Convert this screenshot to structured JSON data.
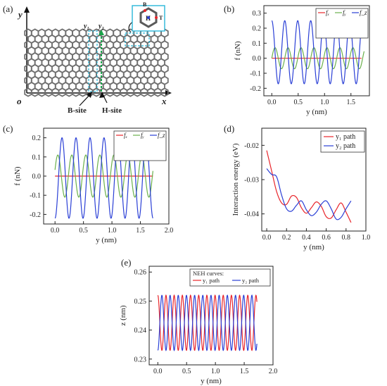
{
  "panel_a": {
    "label": "(a)",
    "axis_y": "y",
    "axis_x": "x",
    "origin": "o",
    "y1": "y₁",
    "y2": "y₂",
    "b_site": "B-site",
    "h_site": "H-site",
    "inset_b": "B",
    "inset_t": "T",
    "inset_h": "H"
  },
  "chart_data": [
    {
      "panel": "(b)",
      "type": "line",
      "xlabel": "y (nm)",
      "ylabel": "f (nN)",
      "xlim": [
        -0.15,
        1.85
      ],
      "ylim": [
        -0.25,
        0.35
      ],
      "xticks": [
        "0.0",
        "0.5",
        "1.0",
        "1.5"
      ],
      "yticks": [
        "-0.2",
        "-0.1",
        "0.0",
        "0.1",
        "0.2",
        "0.3"
      ],
      "legend": [
        "fₓ",
        "fᵧ",
        "f_z"
      ],
      "legend_position": "top-right",
      "series": [
        {
          "name": "fₓ",
          "color": "#e8242a",
          "model": {
            "kind": "const",
            "value": 0.0,
            "x0": 0.0,
            "x1": 1.7
          }
        },
        {
          "name": "fᵧ",
          "color": "#6ab04c",
          "model": {
            "kind": "sin",
            "amp": 0.07,
            "period": 0.246,
            "phase": 0.0,
            "offset": 0.0,
            "x0": 0.0,
            "x1": 1.75
          }
        },
        {
          "name": "f_z",
          "color": "#2a3fd6",
          "model": {
            "kind": "cos",
            "amp": 0.21,
            "period": 0.246,
            "phase": 0.0,
            "offset": 0.04,
            "x0": 0.0,
            "x1": 1.7
          }
        }
      ]
    },
    {
      "panel": "(c)",
      "type": "line",
      "xlabel": "y (nm)",
      "ylabel": "f (nN)",
      "xlim": [
        -0.2,
        2.0
      ],
      "ylim": [
        -0.25,
        0.25
      ],
      "xticks": [
        "0.0",
        "0.5",
        "1.0",
        "1.5",
        "2.0"
      ],
      "yticks": [
        "-0.2",
        "-0.1",
        "0.0",
        "0.1",
        "0.2"
      ],
      "legend": [
        "fₓ",
        "fᵧ",
        "f_z"
      ],
      "legend_position": "top-right",
      "series": [
        {
          "name": "fₓ",
          "color": "#e8242a",
          "model": {
            "kind": "const",
            "value": 0.0,
            "x0": 0.0,
            "x1": 1.72
          }
        },
        {
          "name": "fᵧ",
          "color": "#6ab04c",
          "model": {
            "kind": "sin",
            "amp": 0.11,
            "period": 0.246,
            "phase": 0.3,
            "offset": 0.0,
            "x0": 0.0,
            "x1": 1.72
          }
        },
        {
          "name": "f_z",
          "color": "#2a3fd6",
          "model": {
            "kind": "sin",
            "amp": 0.21,
            "period": 0.246,
            "phase": -1.57,
            "offset": -0.01,
            "x0": 0.0,
            "x1": 1.72
          }
        }
      ]
    },
    {
      "panel": "(d)",
      "type": "line",
      "xlabel": "y (nm)",
      "ylabel": "Interaction energy (eV)",
      "xlim": [
        -0.05,
        1.0
      ],
      "ylim": [
        -0.045,
        -0.015
      ],
      "xticks": [
        "0.0",
        "0.2",
        "0.4",
        "0.6",
        "0.8",
        "1.0"
      ],
      "yticks": [
        "-0.04",
        "-0.03",
        "-0.02"
      ],
      "legend": [
        "y₁ path",
        "y₂ path"
      ],
      "legend_position": "top-right",
      "series": [
        {
          "name": "y₁ path",
          "color": "#e8242a",
          "points": [
            [
              0.0,
              -0.0215
            ],
            [
              0.05,
              -0.0275
            ],
            [
              0.1,
              -0.0335
            ],
            [
              0.15,
              -0.0368
            ],
            [
              0.2,
              -0.0372
            ],
            [
              0.25,
              -0.0348
            ],
            [
              0.3,
              -0.0352
            ],
            [
              0.35,
              -0.0382
            ],
            [
              0.4,
              -0.0398
            ],
            [
              0.45,
              -0.0382
            ],
            [
              0.5,
              -0.0365
            ],
            [
              0.55,
              -0.0378
            ],
            [
              0.6,
              -0.0408
            ],
            [
              0.65,
              -0.0412
            ],
            [
              0.7,
              -0.0388
            ],
            [
              0.75,
              -0.0368
            ],
            [
              0.8,
              -0.0395
            ],
            [
              0.85,
              -0.0425
            ]
          ]
        },
        {
          "name": "y₂ path",
          "color": "#2a3fd6",
          "points": [
            [
              0.0,
              -0.0268
            ],
            [
              0.05,
              -0.0285
            ],
            [
              0.1,
              -0.0292
            ],
            [
              0.15,
              -0.0345
            ],
            [
              0.2,
              -0.0385
            ],
            [
              0.25,
              -0.0392
            ],
            [
              0.3,
              -0.0375
            ],
            [
              0.35,
              -0.0362
            ],
            [
              0.4,
              -0.0388
            ],
            [
              0.45,
              -0.0405
            ],
            [
              0.5,
              -0.0395
            ],
            [
              0.55,
              -0.0372
            ],
            [
              0.6,
              -0.0362
            ],
            [
              0.65,
              -0.0385
            ],
            [
              0.7,
              -0.0415
            ],
            [
              0.75,
              -0.041
            ],
            [
              0.8,
              -0.0385
            ],
            [
              0.85,
              -0.0362
            ]
          ]
        }
      ]
    },
    {
      "panel": "(e)",
      "type": "line",
      "xlabel": "y (nm)",
      "ylabel": "z (nm)",
      "xlim": [
        -0.15,
        2.0
      ],
      "ylim": [
        0.228,
        0.262
      ],
      "xticks": [
        "0.0",
        "0.5",
        "1.0",
        "1.5",
        "2.0"
      ],
      "yticks": [
        "0.23",
        "0.24",
        "0.25",
        "0.26"
      ],
      "legend_title": "NEH curves:",
      "legend": [
        "y₁ path",
        "y₂ path"
      ],
      "legend_position": "top-right",
      "series": [
        {
          "name": "y₁ path",
          "color": "#e8242a",
          "model": {
            "kind": "cos",
            "amp": 0.0095,
            "period": 0.142,
            "phase": 0.0,
            "offset": 0.2425,
            "x0": 0.0,
            "x1": 1.72
          }
        },
        {
          "name": "y₂ path",
          "color": "#2a3fd6",
          "model": {
            "kind": "cos",
            "amp": 0.0095,
            "period": 0.142,
            "phase": 3.1416,
            "offset": 0.2425,
            "x0": 0.0,
            "x1": 1.72
          }
        }
      ]
    }
  ],
  "colors": {
    "red": "#e8242a",
    "green": "#6ab04c",
    "blue": "#2a3fd6",
    "cyan": "#29b6d8",
    "lattice": "#6f6f6f"
  }
}
